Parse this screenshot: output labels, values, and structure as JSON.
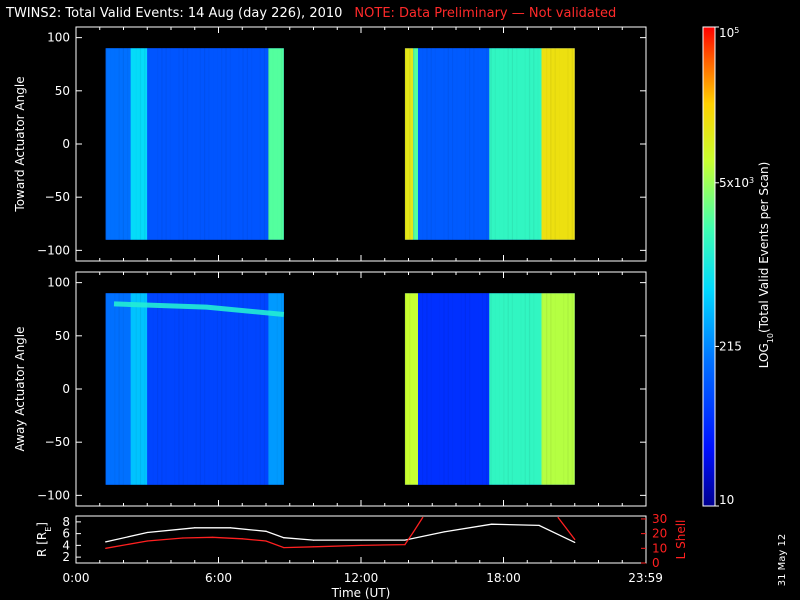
{
  "header": {
    "title": "TWINS2: Total Valid Events: 14 Aug (day 226), 2010",
    "note": "NOTE: Data Preliminary — Not validated"
  },
  "footer": {
    "date_stamp": "31 May 12"
  },
  "colors": {
    "background": "#000000",
    "note_red": "#ff2a2a",
    "lshell_red": "#ff2020",
    "r_white": "#ffffff"
  },
  "chart_data": [
    {
      "type": "heatmap",
      "panel": "toward",
      "ylabel": "Toward Actuator Angle",
      "xlim": [
        0,
        24
      ],
      "ylim": [
        -110,
        110
      ],
      "yticks": [
        "100",
        "50",
        "0",
        "−50",
        "−100"
      ],
      "ytick_values": [
        100,
        50,
        0,
        -50,
        -100
      ],
      "data_coverage_hours": [
        [
          1.25,
          8.75
        ],
        [
          13.85,
          21.0
        ]
      ],
      "angle_range": [
        -90,
        90
      ],
      "bands": [
        {
          "x": [
            1.25,
            2.3
          ],
          "level": 0.3
        },
        {
          "x": [
            2.3,
            3.0
          ],
          "level": 0.46
        },
        {
          "x": [
            3.0,
            8.1
          ],
          "level": 0.25
        },
        {
          "x": [
            8.1,
            8.75
          ],
          "level": 0.6
        },
        {
          "x": [
            13.85,
            14.2
          ],
          "level": 0.78
        },
        {
          "x": [
            14.2,
            14.4
          ],
          "level": 0.6
        },
        {
          "x": [
            14.4,
            17.4
          ],
          "level": 0.26
        },
        {
          "x": [
            17.4,
            19.6
          ],
          "level": 0.55
        },
        {
          "x": [
            19.6,
            21.0
          ],
          "level": 0.8
        }
      ]
    },
    {
      "type": "heatmap",
      "panel": "away",
      "ylabel": "Away Actuator Angle",
      "xlim": [
        0,
        24
      ],
      "ylim": [
        -110,
        110
      ],
      "yticks": [
        "100",
        "50",
        "0",
        "−50",
        "−100"
      ],
      "ytick_values": [
        100,
        50,
        0,
        -50,
        -100
      ],
      "data_coverage_hours": [
        [
          1.25,
          8.75
        ],
        [
          13.85,
          21.0
        ]
      ],
      "angle_range": [
        -90,
        90
      ],
      "bands": [
        {
          "x": [
            1.25,
            2.3
          ],
          "level": 0.3
        },
        {
          "x": [
            2.3,
            3.0
          ],
          "level": 0.42
        },
        {
          "x": [
            3.0,
            8.1
          ],
          "level": 0.22
        },
        {
          "x": [
            8.1,
            8.75
          ],
          "level": 0.36
        },
        {
          "x": [
            13.85,
            14.4
          ],
          "level": 0.72
        },
        {
          "x": [
            14.4,
            17.4
          ],
          "level": 0.18
        },
        {
          "x": [
            17.4,
            19.6
          ],
          "level": 0.55
        },
        {
          "x": [
            19.6,
            21.0
          ],
          "level": 0.7
        }
      ],
      "bright_stripe_angle": [
        80,
        70
      ]
    },
    {
      "type": "line",
      "panel": "orbit",
      "xlabel": "Time (UT)",
      "ylabel_left": "R [R_E]",
      "ylabel_right": "L Shell",
      "xticks": [
        "0:00",
        "6:00",
        "12:00",
        "18:00",
        "23:59"
      ],
      "xtick_values": [
        0,
        6,
        12,
        18,
        23.983
      ],
      "ylim_left": [
        1,
        9
      ],
      "yticks_left": [
        "8",
        "6",
        "4",
        "2"
      ],
      "ytick_values_left": [
        8,
        6,
        4,
        2
      ],
      "ylim_right": [
        0,
        32
      ],
      "yticks_right": [
        "30",
        "20",
        "10",
        "0"
      ],
      "ytick_values_right": [
        30,
        20,
        10,
        0
      ],
      "series": [
        {
          "name": "R",
          "color": "#ffffff",
          "axis": "left",
          "x": [
            1.25,
            3,
            5,
            6.5,
            8.0,
            8.75,
            10,
            12,
            13.85,
            15.5,
            17.5,
            19.5,
            21.0
          ],
          "y": [
            4.6,
            6.2,
            7.0,
            7.0,
            6.4,
            5.3,
            4.9,
            4.9,
            4.9,
            6.3,
            7.6,
            7.4,
            4.5
          ]
        },
        {
          "name": "L Shell",
          "color": "#ff2020",
          "axis": "right",
          "x": [
            1.25,
            3,
            4.5,
            5.75,
            7,
            8.0,
            8.75,
            10,
            12,
            13.85,
            14.2,
            14.6
          ],
          "y": [
            10,
            15,
            17,
            17.5,
            16.5,
            15,
            10.5,
            11,
            12,
            12.5,
            21,
            31
          ]
        },
        {
          "name": "L Shell segment 2",
          "color": "#ff2020",
          "axis": "right",
          "x": [
            20.3,
            21.0
          ],
          "y": [
            31,
            16
          ]
        }
      ]
    }
  ],
  "colorbar": {
    "label": "LOG10(Total Valid Events per Scan)",
    "ticks": [
      "10^5",
      "5x10^3",
      "215",
      "10"
    ],
    "tick_values": [
      100000,
      5000,
      215,
      10
    ],
    "range": [
      10,
      100000
    ]
  }
}
